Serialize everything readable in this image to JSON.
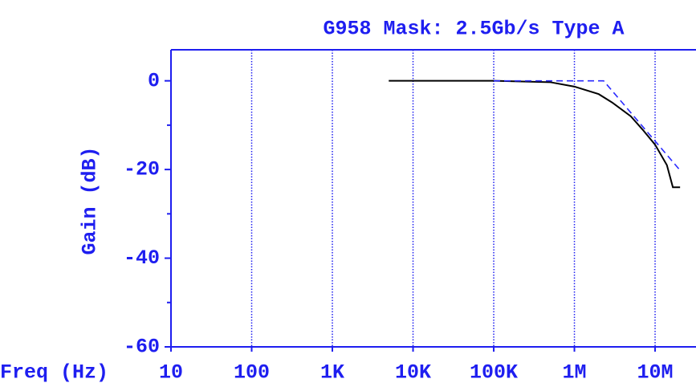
{
  "chart_data": {
    "type": "line",
    "title": "G958 Mask: 2.5Gb/s  Type A",
    "xlabel": "Freq (Hz)",
    "ylabel": "Gain (dB)",
    "xscale": "log",
    "grid": true,
    "axis_color": "#1e1ef0",
    "xlim": [
      10,
      30000000
    ],
    "ylim": [
      -60,
      7
    ],
    "xticks": [
      10,
      100,
      {
        "value": 1000,
        "label": "1K"
      },
      {
        "value": 10000,
        "label": "10K"
      },
      {
        "value": 100000,
        "label": "100K"
      },
      {
        "value": 1000000,
        "label": "1M"
      },
      {
        "value": 10000000,
        "label": "10M"
      }
    ],
    "yticks": [
      -60,
      -40,
      -20,
      0
    ],
    "yminorticks": [
      -50,
      -30,
      -10
    ],
    "series": [
      {
        "color": "#000000",
        "style": "solid",
        "x": [
          5000,
          100000,
          500000,
          1000000,
          2000000,
          3000000,
          5000000,
          7000000,
          10000000,
          14000000,
          16600000,
          20400000
        ],
        "values": [
          0,
          0,
          -0.3,
          -1.3,
          -3,
          -5,
          -8,
          -11,
          -14.4,
          -19,
          -24,
          -24
        ]
      },
      {
        "color": "#2a2aff",
        "style": "dashed",
        "x": [
          100000,
          2300000,
          20000000
        ],
        "values": [
          0,
          0,
          -20
        ]
      }
    ]
  }
}
